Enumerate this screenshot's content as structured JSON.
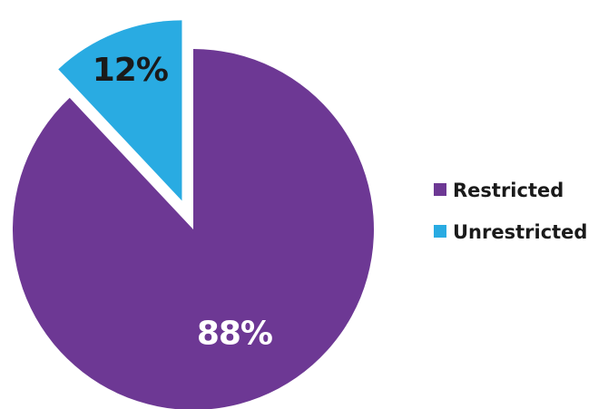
{
  "chart_data": {
    "type": "pie",
    "categories": [
      "Restricted",
      "Unrestricted"
    ],
    "values": [
      88,
      12
    ],
    "labels": [
      "88%",
      "12%"
    ],
    "colors": [
      "#6d3894",
      "#29abe2"
    ],
    "exploded": [
      false,
      true
    ],
    "legend_position": "right",
    "title": ""
  },
  "legend": {
    "items": [
      {
        "label": "Restricted",
        "color": "#6d3894"
      },
      {
        "label": "Unrestricted",
        "color": "#29abe2"
      }
    ]
  }
}
